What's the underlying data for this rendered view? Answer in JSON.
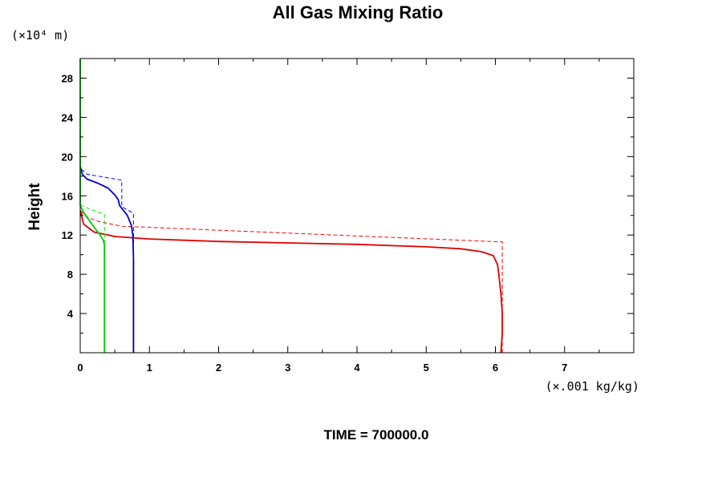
{
  "chart_data": {
    "type": "line",
    "title": "All Gas Mixing Ratio",
    "ylabel": "Height",
    "y_unit_label": "(×10⁴ m)",
    "x_unit_label": "(×.001 kg/kg)",
    "footer": "TIME = 700000.0",
    "xlim": [
      0,
      8
    ],
    "ylim": [
      0,
      30
    ],
    "x_ticks": [
      0,
      1,
      2,
      3,
      4,
      5,
      6,
      7
    ],
    "y_ticks": [
      4,
      8,
      12,
      16,
      20,
      24,
      28
    ],
    "x_tick_labels": [
      "0",
      "1",
      "2",
      "3",
      "4",
      "5",
      "6",
      "7"
    ],
    "y_tick_labels": [
      "4",
      "8",
      "12",
      "16",
      "20",
      "24",
      "28"
    ],
    "grid": false,
    "series": [
      {
        "color": "#ff0000",
        "style": "dashed",
        "points": [
          [
            6.1,
            0
          ],
          [
            6.1,
            11.3
          ],
          [
            0.6,
            12.9
          ],
          [
            0.25,
            13.4
          ],
          [
            0.05,
            14
          ],
          [
            0,
            14.6
          ]
        ]
      },
      {
        "color": "#e00000",
        "style": "solid",
        "points": [
          [
            6.08,
            0
          ],
          [
            6.1,
            2
          ],
          [
            6.1,
            4
          ],
          [
            6.08,
            6
          ],
          [
            6.05,
            8
          ],
          [
            6.03,
            9
          ],
          [
            5.97,
            9.9
          ],
          [
            5.8,
            10.3
          ],
          [
            5.5,
            10.6
          ],
          [
            5,
            10.8
          ],
          [
            4,
            11.05
          ],
          [
            3,
            11.2
          ],
          [
            2,
            11.35
          ],
          [
            1,
            11.6
          ],
          [
            0.5,
            11.85
          ],
          [
            0.2,
            12.3
          ],
          [
            0.05,
            13.1
          ],
          [
            0,
            14.5
          ]
        ]
      },
      {
        "color": "#0000ff",
        "style": "dashed",
        "points": [
          [
            0.77,
            0
          ],
          [
            0.77,
            14.2
          ],
          [
            0.6,
            14.9
          ],
          [
            0.6,
            17.6
          ],
          [
            0.1,
            18.2
          ],
          [
            0,
            18.8
          ]
        ]
      },
      {
        "color": "#0000cc",
        "style": "solid",
        "points": [
          [
            0.77,
            9.5
          ],
          [
            0.76,
            12
          ],
          [
            0.74,
            13
          ],
          [
            0.68,
            14
          ],
          [
            0.57,
            15
          ],
          [
            0.55,
            15.6
          ],
          [
            0.5,
            16.1
          ],
          [
            0.4,
            16.8
          ],
          [
            0.25,
            17.3
          ],
          [
            0.1,
            17.7
          ],
          [
            0.03,
            18.2
          ],
          [
            0,
            19
          ]
        ]
      },
      {
        "color": "#000080",
        "style": "solid",
        "points": [
          [
            0.77,
            0
          ],
          [
            0.77,
            9.5
          ]
        ]
      },
      {
        "color": "#00ee00",
        "style": "dashed",
        "points": [
          [
            0.35,
            0
          ],
          [
            0.35,
            14.1
          ],
          [
            0.2,
            14.5
          ],
          [
            0.05,
            14.9
          ],
          [
            0,
            15.1
          ]
        ]
      },
      {
        "color": "#00cc00",
        "style": "solid",
        "points": [
          [
            0.35,
            0
          ],
          [
            0.35,
            9
          ],
          [
            0.35,
            11
          ],
          [
            0.33,
            11.5
          ],
          [
            0.28,
            12.1
          ],
          [
            0.22,
            12.6
          ],
          [
            0.17,
            13.1
          ],
          [
            0.1,
            13.8
          ],
          [
            0.04,
            14.4
          ],
          [
            0,
            15
          ]
        ]
      },
      {
        "color": "#00dd00",
        "style": "solid",
        "points": [
          [
            0,
            15
          ],
          [
            0,
            20
          ],
          [
            0,
            25
          ],
          [
            0,
            30
          ]
        ]
      }
    ]
  }
}
